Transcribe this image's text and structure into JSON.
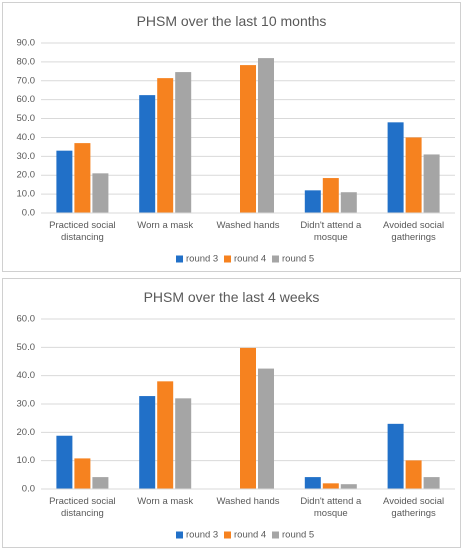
{
  "chart_data": [
    {
      "type": "bar",
      "title": "PHSM over the last 10 months",
      "categories": [
        "Practiced social distancing",
        "Worn a mask",
        "Washed hands",
        "Didn't attend a mosque",
        "Avoided social gatherings"
      ],
      "series": [
        {
          "name": "round 3",
          "color": "#2170c8",
          "values": [
            33,
            62.4,
            null,
            12,
            48
          ]
        },
        {
          "name": "round 4",
          "color": "#f6821f",
          "values": [
            37,
            71.4,
            78.3,
            18.5,
            40
          ]
        },
        {
          "name": "round 5",
          "color": "#a5a5a5",
          "values": [
            21,
            74.6,
            82,
            11,
            31
          ]
        }
      ],
      "ylim": [
        0,
        90
      ],
      "yticks": [
        {
          "value": 0,
          "label": "0.0"
        },
        {
          "value": 10,
          "label": "10.0"
        },
        {
          "value": 20,
          "label": "20.0"
        },
        {
          "value": 30,
          "label": "30.0"
        },
        {
          "value": 40,
          "label": "40.0"
        },
        {
          "value": 50,
          "label": "50.0"
        },
        {
          "value": 60,
          "label": "60.0"
        },
        {
          "value": 70,
          "label": "70.0"
        },
        {
          "value": 80,
          "label": "80.0"
        },
        {
          "value": 90,
          "label": "90.0"
        }
      ],
      "grid": true,
      "legend": "bottom"
    },
    {
      "type": "bar",
      "title": "PHSM over the last 4 weeks",
      "categories": [
        "Practiced social distancing",
        "Worn a mask",
        "Washed hands",
        "Didn't attend a mosque",
        "Avoided social gatherings"
      ],
      "series": [
        {
          "name": "round 3",
          "color": "#2170c8",
          "values": [
            18.8,
            32.8,
            null,
            4.2,
            23
          ]
        },
        {
          "name": "round 4",
          "color": "#f6821f",
          "values": [
            10.8,
            38,
            49.8,
            2,
            10.1
          ]
        },
        {
          "name": "round 5",
          "color": "#a5a5a5",
          "values": [
            4.2,
            32,
            42.5,
            1.7,
            4.2
          ]
        }
      ],
      "ylim": [
        0,
        60
      ],
      "yticks": [
        {
          "value": 0,
          "label": "0.0"
        },
        {
          "value": 10,
          "label": "10.0"
        },
        {
          "value": 20,
          "label": "20.0"
        },
        {
          "value": 30,
          "label": "30.0"
        },
        {
          "value": 40,
          "label": "40.0"
        },
        {
          "value": 50,
          "label": "50.0"
        },
        {
          "value": 60,
          "label": "60.0"
        }
      ],
      "grid": true,
      "legend": "bottom"
    }
  ]
}
